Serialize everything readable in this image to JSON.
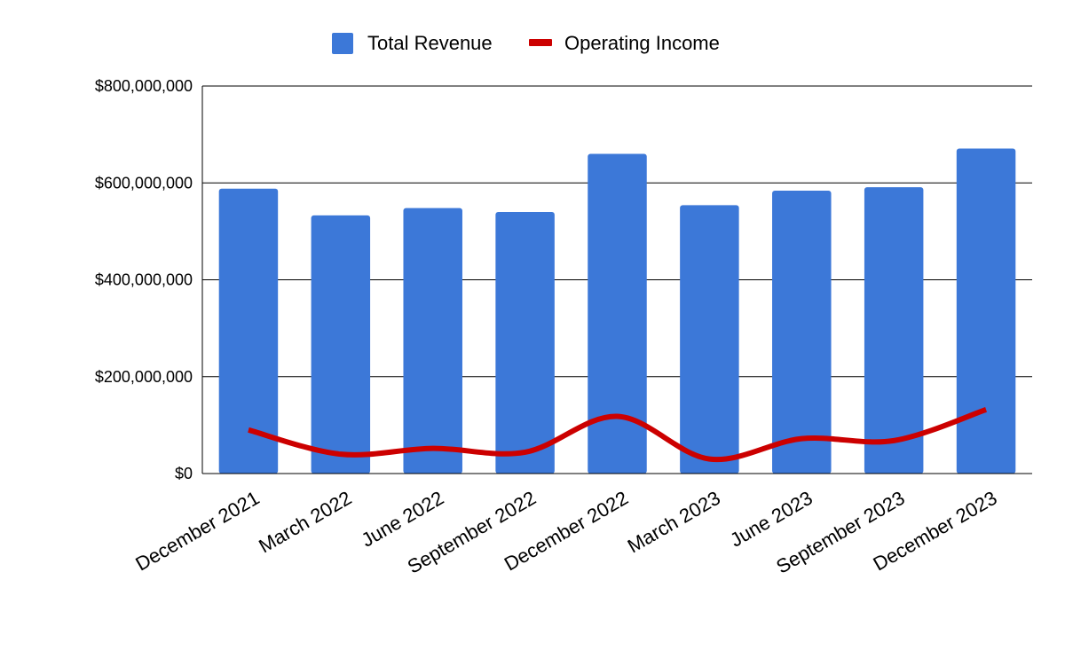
{
  "chart_data": {
    "type": "bar",
    "title": "",
    "xlabel": "",
    "ylabel": "",
    "categories": [
      "December 2021",
      "March 2022",
      "June 2022",
      "September 2022",
      "December 2022",
      "March 2023",
      "June 2023",
      "September 2023",
      "December 2023"
    ],
    "series": [
      {
        "name": "Total Revenue",
        "type": "bar",
        "color": "#3c78d8",
        "values": [
          588000000,
          533000000,
          548000000,
          540000000,
          660000000,
          554000000,
          584000000,
          591000000,
          671000000
        ]
      },
      {
        "name": "Operating Income",
        "type": "line",
        "smooth": true,
        "color": "#cc0000",
        "values": [
          90000000,
          40000000,
          52000000,
          44000000,
          118000000,
          30000000,
          72000000,
          68000000,
          132000000
        ]
      }
    ],
    "ylim": [
      0,
      800000000
    ],
    "yticks": [
      0,
      200000000,
      400000000,
      600000000,
      800000000
    ],
    "ytick_labels": [
      "$0",
      "$200,000,000",
      "$400,000,000",
      "$600,000,000",
      "$800,000,000"
    ],
    "grid": true,
    "legend": "top-center"
  }
}
